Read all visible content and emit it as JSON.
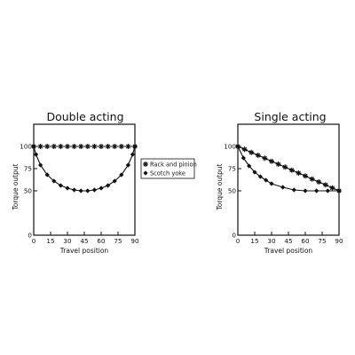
{
  "chart_data": [
    {
      "type": "line",
      "title": "Double acting",
      "xlabel": "Travel position",
      "ylabel": "Torque output",
      "xlim": [
        0,
        90
      ],
      "ylim": [
        0,
        125
      ],
      "x_ticks": [
        "0",
        "15",
        "30",
        "45",
        "60",
        "75",
        "90"
      ],
      "y_ticks": [
        "0",
        "50",
        "75",
        "100"
      ],
      "grid": false,
      "legend_position": "right-outside",
      "series": [
        {
          "name": "Rack and pinion",
          "marker": "star",
          "x": [
            0,
            6,
            12,
            18,
            24,
            30,
            36,
            42,
            48,
            54,
            60,
            66,
            72,
            78,
            84,
            90
          ],
          "y": [
            100,
            100,
            100,
            100,
            100,
            100,
            100,
            100,
            100,
            100,
            100,
            100,
            100,
            100,
            100,
            100
          ]
        },
        {
          "name": "Scotch yoke",
          "marker": "diamond",
          "x": [
            0,
            2,
            6,
            12,
            18,
            24,
            30,
            36,
            42,
            48,
            54,
            60,
            66,
            72,
            78,
            84,
            88,
            90
          ],
          "y": [
            100,
            91,
            79,
            68,
            61,
            56,
            53,
            51,
            50,
            50,
            51,
            53,
            56,
            61,
            68,
            79,
            91,
            100
          ]
        }
      ]
    },
    {
      "type": "line",
      "title": "Single acting",
      "xlabel": "Travel position",
      "ylabel": "Torque output",
      "xlim": [
        0,
        90
      ],
      "ylim": [
        0,
        125
      ],
      "x_ticks": [
        "0",
        "15",
        "30",
        "45",
        "60",
        "75",
        "90"
      ],
      "y_ticks": [
        "0",
        "50",
        "75",
        "100"
      ],
      "grid": false,
      "series": [
        {
          "name": "Rack and pinion",
          "marker": "star",
          "x": [
            0,
            6,
            12,
            18,
            24,
            30,
            36,
            42,
            48,
            54,
            60,
            66,
            72,
            78,
            84,
            90
          ],
          "y": [
            100,
            96.7,
            93.3,
            90,
            86.7,
            83.3,
            80,
            76.7,
            73.3,
            70,
            66.7,
            63.3,
            60,
            56.7,
            53.3,
            50
          ]
        },
        {
          "name": "Scotch yoke",
          "marker": "diamond",
          "x": [
            0,
            5,
            10,
            15,
            20,
            25,
            30,
            40,
            50,
            60,
            70,
            80,
            90
          ],
          "y": [
            100,
            87,
            78,
            71,
            66,
            62,
            58,
            54,
            51,
            50,
            50,
            50,
            50
          ]
        }
      ]
    }
  ]
}
